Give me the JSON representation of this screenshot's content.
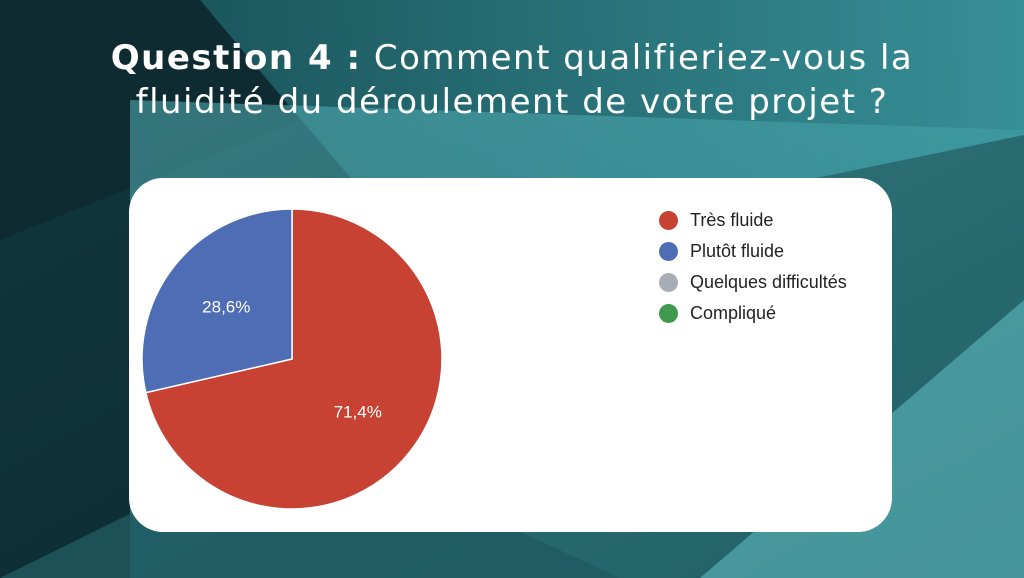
{
  "header": {
    "question_prefix": "Question 4 :",
    "question_line1_rest": "Comment qualifieriez-vous la",
    "question_line2": "fluidité du déroulement de votre projet ?"
  },
  "chart_data": {
    "type": "pie",
    "slices": [
      {
        "label": "Très fluide",
        "value": 71.4,
        "display": "71,4%",
        "color": "#c84233"
      },
      {
        "label": "Plutôt fluide",
        "value": 28.6,
        "display": "28,6%",
        "color": "#4e6db5"
      },
      {
        "label": "Quelques difficultés",
        "value": 0,
        "display": "",
        "color": "#a8acb4"
      },
      {
        "label": "Compliqué",
        "value": 0,
        "display": "",
        "color": "#3f9a4d"
      }
    ],
    "legend_position": "right"
  },
  "colors": {
    "background_dark": "#0e2d33",
    "background_teal": "#4aa7ad",
    "card": "#ffffff"
  }
}
